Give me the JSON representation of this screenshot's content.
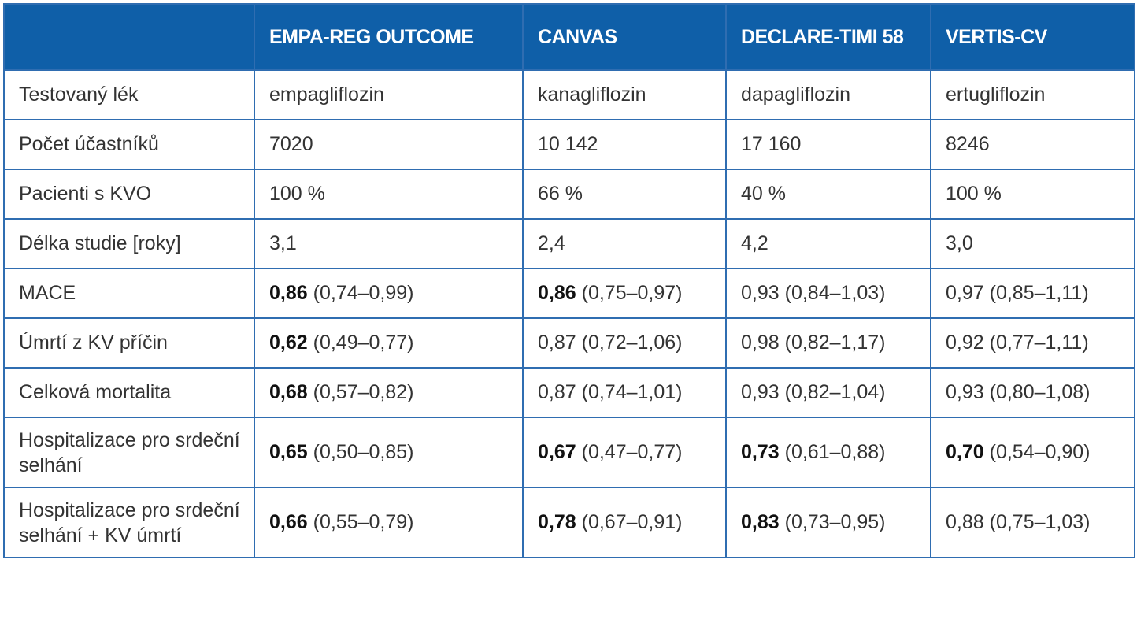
{
  "table": {
    "headers": [
      "",
      "EMPA-REG OUTCOME",
      "CANVAS",
      "DECLARE-TIMI 58",
      "VERTIS-CV"
    ],
    "rows": [
      {
        "label": "Testovaný lék",
        "cells": [
          {
            "text": "empagliflozin"
          },
          {
            "text": "kanagliflozin"
          },
          {
            "text": "dapagliflozin"
          },
          {
            "text": "ertugliflozin"
          }
        ]
      },
      {
        "label": "Počet účastníků",
        "cells": [
          {
            "text": "7020"
          },
          {
            "text": "10 142"
          },
          {
            "text": "17 160"
          },
          {
            "text": "8246"
          }
        ]
      },
      {
        "label": "Pacienti s KVO",
        "cells": [
          {
            "text": "100 %"
          },
          {
            "text": "66 %"
          },
          {
            "text": "40 %"
          },
          {
            "text": "100 %"
          }
        ]
      },
      {
        "label": "Délka studie [roky]",
        "cells": [
          {
            "text": "3,1"
          },
          {
            "text": "2,4"
          },
          {
            "text": "4,2"
          },
          {
            "text": "3,0"
          }
        ]
      },
      {
        "label": "MACE",
        "cells": [
          {
            "value": "0,86",
            "ci": "(0,74–0,99)",
            "bold": true
          },
          {
            "value": "0,86",
            "ci": "(0,75–0,97)",
            "bold": true
          },
          {
            "value": "0,93",
            "ci": "(0,84–1,03)",
            "bold": false
          },
          {
            "value": "0,97",
            "ci": "(0,85–1,11)",
            "bold": false
          }
        ]
      },
      {
        "label": "Úmrtí z KV příčin",
        "cells": [
          {
            "value": "0,62",
            "ci": "(0,49–0,77)",
            "bold": true
          },
          {
            "value": "0,87",
            "ci": "(0,72–1,06)",
            "bold": false
          },
          {
            "value": "0,98",
            "ci": "(0,82–1,17)",
            "bold": false
          },
          {
            "value": "0,92",
            "ci": "(0,77–1,11)",
            "bold": false
          }
        ]
      },
      {
        "label": "Celková mortalita",
        "cells": [
          {
            "value": "0,68",
            "ci": "(0,57–0,82)",
            "bold": true
          },
          {
            "value": "0,87",
            "ci": "(0,74–1,01)",
            "bold": false
          },
          {
            "value": "0,93",
            "ci": "(0,82–1,04)",
            "bold": false
          },
          {
            "value": "0,93",
            "ci": "(0,80–1,08)",
            "bold": false
          }
        ]
      },
      {
        "label": "Hospitalizace pro srdeční selhání",
        "tall": true,
        "cells": [
          {
            "value": "0,65",
            "ci": "(0,50–0,85)",
            "bold": true
          },
          {
            "value": "0,67",
            "ci": "(0,47–0,77)",
            "bold": true
          },
          {
            "value": "0,73",
            "ci": "(0,61–0,88)",
            "bold": true
          },
          {
            "value": "0,70",
            "ci": "(0,54–0,90)",
            "bold": true
          }
        ]
      },
      {
        "label": "Hospitalizace pro srdeční selhání + KV úmrtí",
        "tall": true,
        "cells": [
          {
            "value": "0,66",
            "ci": "(0,55–0,79)",
            "bold": true
          },
          {
            "value": "0,78",
            "ci": "(0,67–0,91)",
            "bold": true
          },
          {
            "value": "0,83",
            "ci": "(0,73–0,95)",
            "bold": true
          },
          {
            "value": "0,88",
            "ci": "(0,75–1,03)",
            "bold": false
          }
        ]
      }
    ]
  },
  "colors": {
    "header_bg": "#0f5fa8",
    "border": "#2f6db1",
    "header_text": "#ffffff",
    "body_text": "#333333"
  }
}
